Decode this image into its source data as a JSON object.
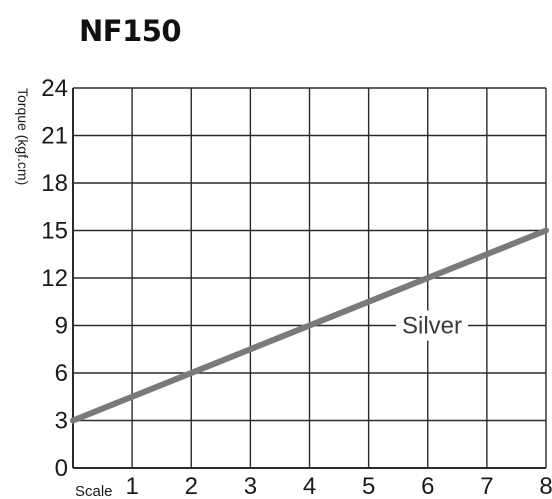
{
  "chart_data": {
    "type": "line",
    "title": "NF150",
    "ylabel": "Torque (kgf.cm)",
    "xlabel": "Scale",
    "xlim": [
      0,
      8
    ],
    "ylim": [
      0,
      24
    ],
    "x_ticks": [
      "1",
      "2",
      "3",
      "4",
      "5",
      "6",
      "7",
      "8"
    ],
    "y_ticks": [
      "0",
      "3",
      "6",
      "9",
      "12",
      "15",
      "18",
      "21",
      "24"
    ],
    "grid": true,
    "series": [
      {
        "name": "Silver",
        "color": "#7a7a7a",
        "x": [
          0,
          8
        ],
        "y": [
          3,
          15
        ]
      }
    ]
  }
}
